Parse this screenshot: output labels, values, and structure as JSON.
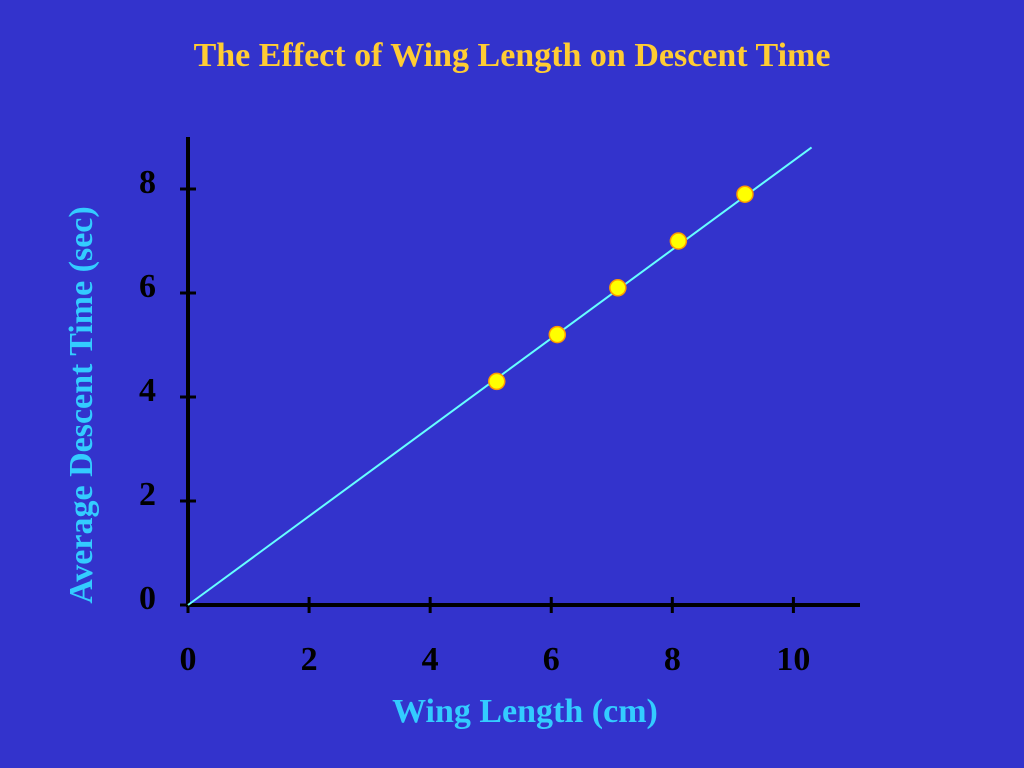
{
  "chart_data": {
    "type": "scatter",
    "title": "The Effect of Wing Length on Descent Time",
    "x_label": "Wing Length (cm)",
    "y_label": "Average Descent Time (sec)",
    "series": [
      {
        "color": "#ffff00",
        "x": [
          5.1,
          6.1,
          7.1,
          8.1,
          9.2
        ],
        "values": [
          4.3,
          5.2,
          6.1,
          7.0,
          7.9
        ]
      }
    ],
    "trendline": {
      "color": "#66ffff",
      "x": [
        0,
        10.3
      ],
      "values": [
        0,
        8.8
      ]
    },
    "xlim": [
      0,
      11.1
    ],
    "ylim": [
      0,
      9
    ],
    "xticks": [
      0,
      2,
      4,
      6,
      8,
      10
    ],
    "yticks": [
      0,
      2,
      4,
      6,
      8
    ],
    "grid": false
  }
}
